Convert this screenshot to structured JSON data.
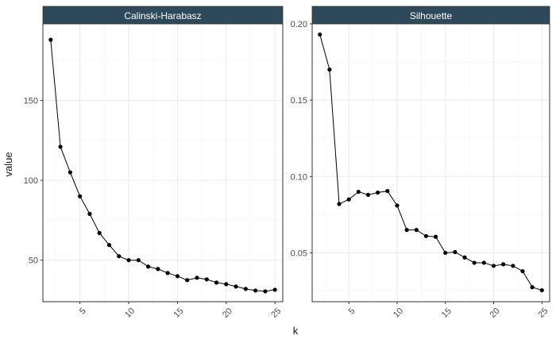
{
  "chart_data": {
    "type": "line",
    "xlabel": "k",
    "ylabel": "value",
    "x": [
      2,
      3,
      4,
      5,
      6,
      7,
      8,
      9,
      10,
      11,
      12,
      13,
      14,
      15,
      16,
      17,
      18,
      19,
      20,
      21,
      22,
      23,
      24,
      25
    ],
    "xlim": [
      1.2,
      25.8
    ],
    "xticks": [
      5,
      10,
      15,
      20,
      25
    ],
    "x_tick_labels": [
      "5",
      "10",
      "15",
      "20",
      "25"
    ],
    "grid": true,
    "panels": [
      {
        "strip_label": "Calinski-Harabasz",
        "values": [
          188,
          121,
          105,
          90,
          79,
          67,
          59.5,
          52.5,
          50,
          50,
          46,
          44.5,
          42,
          40,
          37.5,
          39,
          38,
          36,
          35,
          33.5,
          32,
          31,
          30.5,
          31.5
        ],
        "ylim": [
          24,
          198
        ],
        "yticks": [
          50,
          100,
          150
        ],
        "y_tick_labels": [
          "50",
          "100",
          "150"
        ]
      },
      {
        "strip_label": "Silhouette",
        "values": [
          0.193,
          0.17,
          0.082,
          0.085,
          0.09,
          0.088,
          0.0895,
          0.0905,
          0.081,
          0.065,
          0.065,
          0.061,
          0.0605,
          0.05,
          0.0505,
          0.047,
          0.0435,
          0.0435,
          0.0415,
          0.0425,
          0.0415,
          0.038,
          0.0275,
          0.0255
        ],
        "ylim": [
          0.018,
          0.2
        ],
        "yticks": [
          0.05,
          0.1,
          0.15,
          0.2
        ],
        "y_tick_labels": [
          "0.05",
          "0.10",
          "0.15",
          "0.20"
        ]
      }
    ]
  },
  "colors": {
    "strip_bg": "#2e4a5a",
    "strip_text": "#ffffff",
    "panel_border": "#333333",
    "grid_major": "#ebebeb",
    "grid_minor": "#f5f5f5",
    "line": "#000000",
    "point": "#000000",
    "tick_text": "#4d4d4d"
  }
}
